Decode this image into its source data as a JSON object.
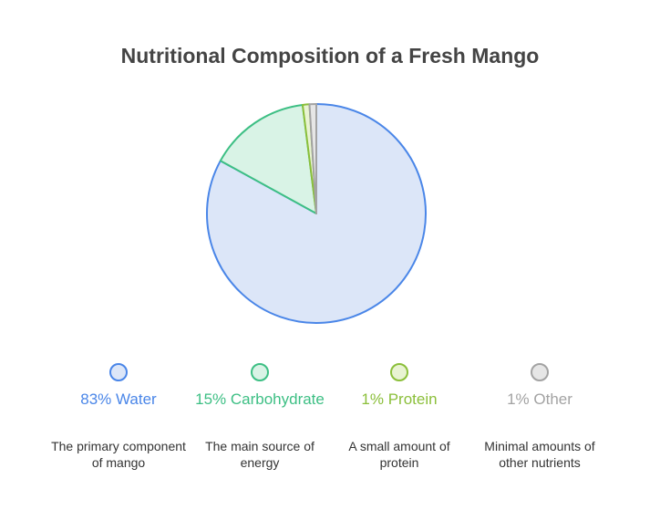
{
  "chart_data": {
    "type": "pie",
    "title": "Nutritional Composition of a Fresh Mango",
    "values": [
      83,
      15,
      1,
      1
    ],
    "value_labels": [
      "83% Water",
      "15% Carbohydrate",
      "1% Protein",
      "1% Other"
    ],
    "descriptions": [
      "The primary component of mango",
      "The main source of energy",
      "A small amount of protein",
      "Minimal amounts of other nutrients"
    ],
    "colors": [
      "#4a86e8",
      "#3dbf84",
      "#8bbf3a",
      "#a3a3a3"
    ],
    "fills": [
      "#dce6f8",
      "#d9f3e6",
      "#e8f3d2",
      "#e6e6e6"
    ]
  }
}
